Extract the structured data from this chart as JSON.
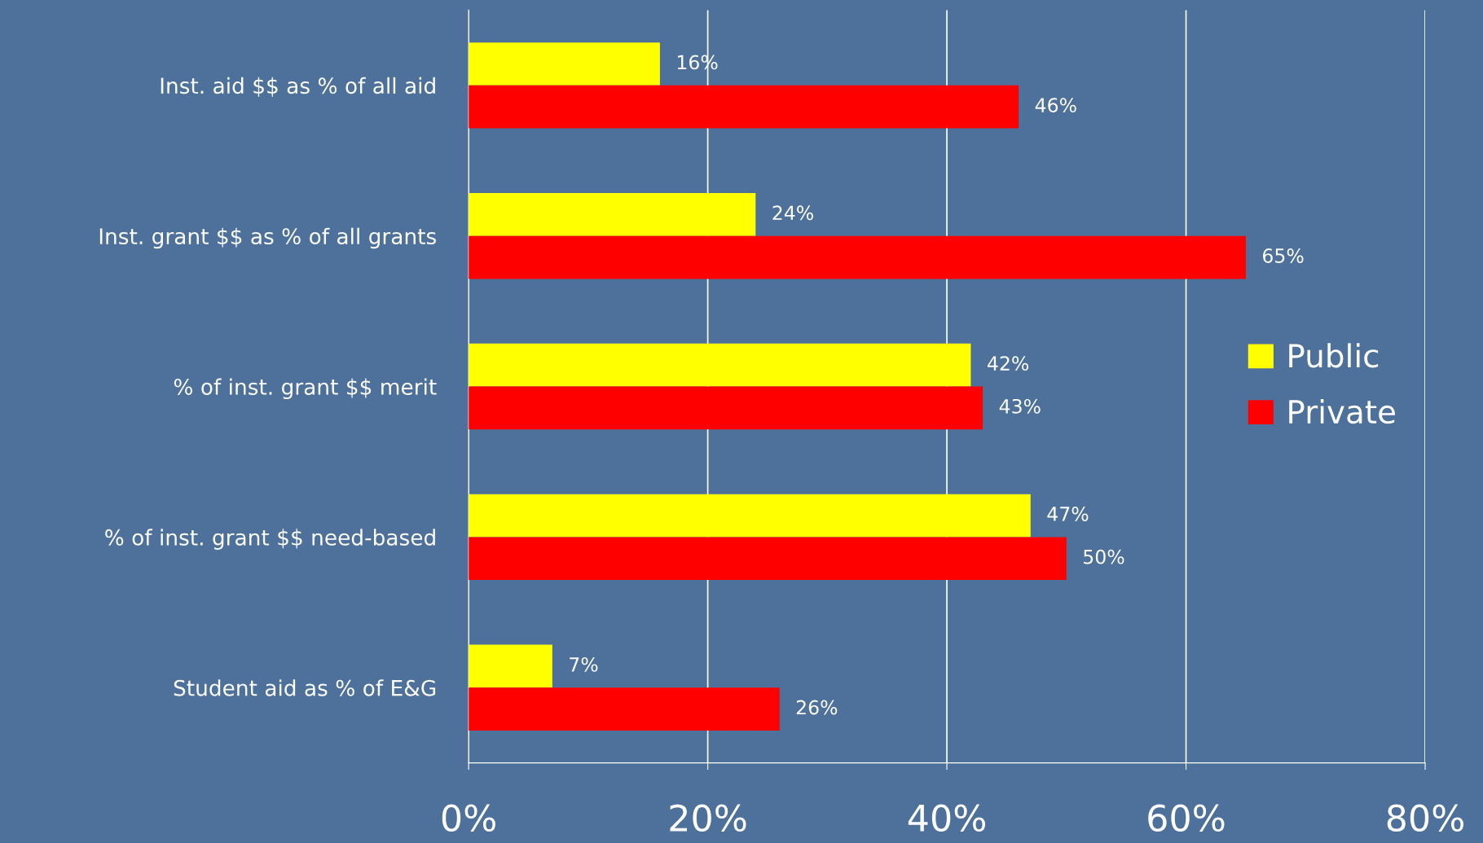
{
  "chart_data": {
    "type": "bar",
    "orientation": "horizontal",
    "categories": [
      "Inst. aid $$ as % of all aid",
      "Inst. grant $$ as % of all grants",
      "% of inst. grant $$ merit",
      "% of inst. grant $$ need-based",
      "Student aid as % of E&G"
    ],
    "series": [
      {
        "name": "Public",
        "color": "#ffff00",
        "values": [
          16,
          24,
          42,
          47,
          7
        ],
        "value_labels": [
          "16%",
          "24%",
          "42%",
          "47%",
          "7%"
        ]
      },
      {
        "name": "Private",
        "color": "#ff0000",
        "values": [
          46,
          65,
          43,
          50,
          26
        ],
        "value_labels": [
          "46%",
          "65%",
          "43%",
          "50%",
          "26%"
        ]
      }
    ],
    "xlim": [
      0,
      80
    ],
    "xticks": [
      {
        "value": 0,
        "label": "0%"
      },
      {
        "value": 20,
        "label": "20%"
      },
      {
        "value": 40,
        "label": "40%"
      },
      {
        "value": 60,
        "label": "60%"
      },
      {
        "value": 80,
        "label": "80%"
      }
    ],
    "grid": "x",
    "legend": "right"
  }
}
